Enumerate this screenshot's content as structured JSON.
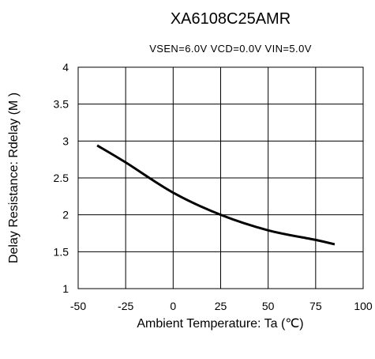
{
  "chart_data": {
    "type": "line",
    "title": "XA6108C25AMR",
    "subtitle": "VSEN=6.0V VCD=0.0V VIN=5.0V",
    "xlabel": "Ambient Temperature: Ta (℃)",
    "ylabel": "Delay Resistance: Rdelay (M   )",
    "xlim": [
      -50,
      100
    ],
    "ylim": [
      1,
      4
    ],
    "xticks": [
      "-50",
      "-25",
      "0",
      "25",
      "50",
      "75",
      "100"
    ],
    "yticks": [
      "1",
      "1.5",
      "2",
      "2.5",
      "3",
      "3.5",
      "4"
    ],
    "grid": true,
    "series": [
      {
        "x": [
          -40,
          -25,
          0,
          25,
          50,
          75,
          85
        ],
        "y": [
          2.94,
          2.71,
          2.3,
          2.0,
          1.79,
          1.66,
          1.6
        ]
      }
    ],
    "colors": {
      "line": "#000000",
      "grid": "#000000",
      "background": "#ffffff"
    }
  }
}
